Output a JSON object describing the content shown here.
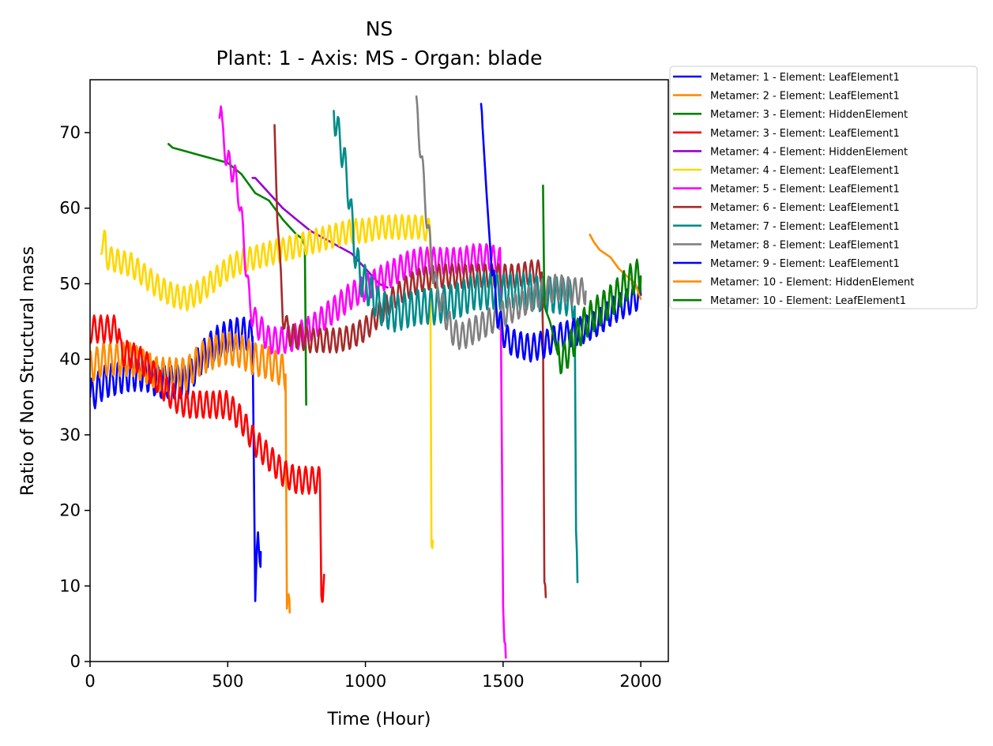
{
  "chart_data": {
    "type": "line",
    "title": "NS",
    "subtitle": "Plant: 1 - Axis: MS - Organ: blade",
    "xlabel": "Time (Hour)",
    "ylabel": "Ratio of Non Structural mass",
    "xlim": [
      0,
      2100
    ],
    "ylim": [
      0,
      77
    ],
    "xticks": [
      0,
      500,
      1000,
      1500,
      2000
    ],
    "yticks": [
      0,
      10,
      20,
      30,
      40,
      50,
      60,
      70
    ],
    "grid": false,
    "legend_position": "outside-right",
    "series": [
      {
        "name": "Metamer: 1 - Element: LeafElement1",
        "color": "#0000ff",
        "x": [
          0,
          50,
          100,
          150,
          200,
          250,
          300,
          350,
          400,
          450,
          500,
          550,
          590,
          600,
          610,
          620
        ],
        "y": [
          35,
          37,
          37.5,
          38,
          38,
          37,
          37,
          37,
          40,
          42,
          43,
          43.5,
          43,
          8,
          16,
          14.5
        ],
        "osc": 2.2,
        "period": 24
      },
      {
        "name": "Metamer: 2 - Element: LeafElement1",
        "color": "#ff8c00",
        "x": [
          0,
          50,
          100,
          150,
          200,
          250,
          300,
          350,
          400,
          450,
          500,
          550,
          600,
          650,
          700,
          710,
          715,
          725
        ],
        "y": [
          39,
          40,
          40,
          40,
          39,
          38,
          38,
          38,
          40,
          41,
          41.5,
          41,
          40,
          39.5,
          38.5,
          38,
          7,
          6.5
        ],
        "osc": 2.2,
        "period": 24
      },
      {
        "name": "Metamer: 3 - Element: HiddenElement",
        "color": "#008000",
        "x": [
          285,
          300,
          350,
          400,
          450,
          500,
          550,
          600,
          650,
          700,
          750,
          770,
          780,
          785
        ],
        "y": [
          68.5,
          68,
          67.5,
          67,
          66.5,
          66,
          64.5,
          62,
          61,
          58.5,
          56.5,
          56,
          55,
          34
        ]
      },
      {
        "name": "Metamer: 3 - Element: LeafElement1",
        "color": "#ff0000",
        "x": [
          0,
          105,
          110,
          150,
          200,
          250,
          300,
          350,
          400,
          450,
          500,
          550,
          600,
          650,
          700,
          750,
          800,
          835,
          840,
          845,
          850
        ],
        "y": [
          44,
          44,
          41,
          40.5,
          39.5,
          37,
          35,
          34,
          34,
          34,
          34,
          32,
          29,
          27,
          25,
          24,
          24,
          24,
          10,
          9.5,
          11.5
        ],
        "osc": 1.8,
        "period": 24
      },
      {
        "name": "Metamer: 4 - Element: HiddenElement",
        "color": "#9400d3",
        "x": [
          590,
          600,
          650,
          700,
          750,
          800,
          850,
          900,
          950,
          1000,
          1050,
          1080
        ],
        "y": [
          64,
          64,
          62,
          60,
          58.5,
          57,
          56,
          55,
          54,
          52,
          50,
          49.5
        ]
      },
      {
        "name": "Metamer: 4 - Element: LeafElement1",
        "color": "#ffd700",
        "x": [
          40,
          55,
          60,
          100,
          150,
          200,
          250,
          300,
          350,
          400,
          450,
          500,
          550,
          600,
          650,
          700,
          750,
          800,
          850,
          900,
          950,
          1000,
          1050,
          1100,
          1150,
          1200,
          1235,
          1240,
          1245
        ],
        "y": [
          55.5,
          55.5,
          53.5,
          53,
          52.5,
          51,
          49.5,
          48.5,
          48,
          49,
          50.5,
          52,
          53,
          53.5,
          54,
          54.5,
          55,
          55.5,
          56,
          56.5,
          57,
          57,
          57.5,
          57.5,
          57.5,
          57.5,
          57,
          17,
          16
        ],
        "osc": 1.6,
        "period": 24
      },
      {
        "name": "Metamer: 5 - Element: LeafElement1",
        "color": "#ff00ff",
        "x": [
          470,
          475,
          480,
          500,
          520,
          540,
          560,
          580,
          600,
          620,
          650,
          700,
          750,
          800,
          850,
          900,
          950,
          1000,
          1050,
          1100,
          1150,
          1200,
          1250,
          1300,
          1350,
          1400,
          1450,
          1490,
          1500,
          1505,
          1510
        ],
        "y": [
          73.5,
          73,
          70,
          66,
          65,
          62,
          55,
          47,
          45,
          44,
          42.5,
          42.5,
          43,
          44,
          45.5,
          47,
          48.5,
          49.5,
          50.5,
          51.5,
          52.5,
          53,
          53,
          53,
          53,
          53.5,
          53.5,
          53,
          9,
          3,
          0.5
        ],
        "osc": 1.8,
        "period": 24
      },
      {
        "name": "Metamer: 6 - Element: LeafElement1",
        "color": "#a52a2a",
        "x": [
          670,
          680,
          690,
          700,
          720,
          740,
          760,
          800,
          850,
          900,
          950,
          1000,
          1050,
          1100,
          1150,
          1200,
          1250,
          1300,
          1350,
          1400,
          1450,
          1500,
          1550,
          1600,
          1640,
          1645,
          1650,
          1655
        ],
        "y": [
          71,
          60,
          52,
          46,
          43.5,
          43,
          43,
          42.5,
          42.5,
          42.5,
          43,
          44,
          46,
          48,
          49.5,
          50.5,
          51,
          51,
          51,
          51,
          51,
          51,
          51,
          51.5,
          51.5,
          43,
          9,
          8.5
        ],
        "osc": 1.6,
        "period": 24
      },
      {
        "name": "Metamer: 7 - Element: LeafElement1",
        "color": "#008b8b",
        "x": [
          885,
          890,
          900,
          920,
          940,
          960,
          980,
          1000,
          1050,
          1100,
          1150,
          1200,
          1250,
          1300,
          1350,
          1400,
          1450,
          1500,
          1550,
          1600,
          1650,
          1700,
          1750,
          1760,
          1765,
          1770
        ],
        "y": [
          73.5,
          72,
          70,
          67,
          62,
          55,
          51,
          50,
          47,
          46,
          46.5,
          47,
          47,
          47.5,
          48,
          49,
          49,
          49,
          49,
          49,
          48.5,
          48.5,
          48,
          47,
          15,
          10.5
        ],
        "osc": 2.4,
        "period": 24
      },
      {
        "name": "Metamer: 8 - Element: LeafElement1",
        "color": "#808080",
        "x": [
          1185,
          1190,
          1200,
          1220,
          1240,
          1260,
          1280,
          1300,
          1320,
          1350,
          1400,
          1450,
          1500,
          1550,
          1600,
          1650,
          1700,
          1750,
          1800
        ],
        "y": [
          73,
          72,
          68,
          60,
          53,
          49,
          47,
          45,
          43.5,
          43,
          44,
          45,
          46,
          47,
          48,
          49,
          49.5,
          49,
          49
        ],
        "osc": 1.8,
        "period": 24
      },
      {
        "name": "Metamer: 9 - Element: LeafElement1",
        "color": "#0000ff",
        "x": [
          1420,
          1425,
          1440,
          1460,
          1480,
          1500,
          1520,
          1550,
          1600,
          1650,
          1700,
          1750,
          1800,
          1850,
          1900,
          1950,
          2000
        ],
        "y": [
          72,
          71,
          62,
          52,
          46,
          43.5,
          42.5,
          42,
          41.5,
          42,
          43,
          43.5,
          44,
          45,
          46.5,
          47.5,
          48.5
        ],
        "osc": 1.8,
        "period": 24
      },
      {
        "name": "Metamer: 10 - Element: HiddenElement",
        "color": "#ff8c00",
        "x": [
          1815,
          1830,
          1850,
          1870,
          1890,
          1900,
          1920,
          1950,
          1980,
          2000
        ],
        "y": [
          56.5,
          55.5,
          54.5,
          54,
          53.5,
          53,
          52,
          51,
          50,
          48
        ]
      },
      {
        "name": "Metamer: 10 - Element: LeafElement1",
        "color": "#008000",
        "x": [
          1645,
          1650,
          1660,
          1670,
          1680,
          1690,
          1700,
          1720,
          1750,
          1800,
          1850,
          1900,
          1950,
          1980,
          2000
        ],
        "y": [
          63,
          47,
          46,
          45,
          43.5,
          42,
          40.5,
          40,
          42,
          45,
          46.5,
          48,
          50,
          51,
          51
        ],
        "osc": 2.2,
        "period": 24,
        "osc_from": 1700
      }
    ]
  }
}
